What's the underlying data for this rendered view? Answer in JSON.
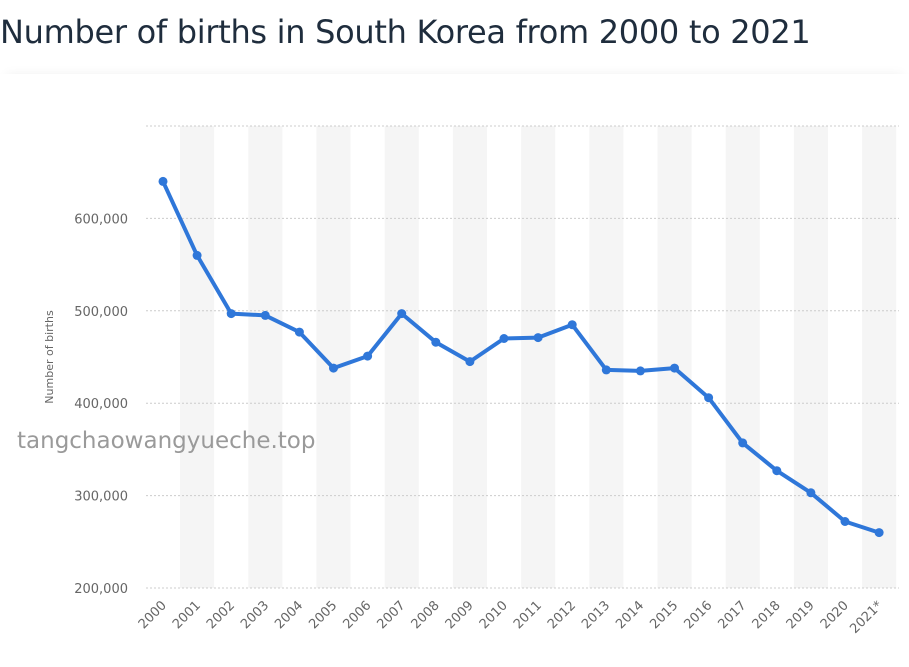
{
  "page": {
    "title": "Number of births in South Korea from 2000 to 2021",
    "watermark": "tangchaowangyueche.top",
    "accent_color": "#2f77d9"
  },
  "chart_data": {
    "type": "line",
    "title": "Number of births in South Korea from 2000 to 2021",
    "xlabel": "",
    "ylabel": "Number of births",
    "categories": [
      "2000",
      "2001",
      "2002",
      "2003",
      "2004",
      "2005",
      "2006",
      "2007",
      "2008",
      "2009",
      "2010",
      "2011",
      "2012",
      "2013",
      "2014",
      "2015",
      "2016",
      "2017",
      "2018",
      "2019",
      "2020",
      "2021*"
    ],
    "series": [
      {
        "values": [
          640000,
          560000,
          497000,
          495000,
          477000,
          438000,
          451000,
          497000,
          466000,
          445000,
          470000,
          471000,
          485000,
          436000,
          435000,
          438000,
          406000,
          357000,
          327000,
          303000,
          272000,
          260000
        ]
      }
    ],
    "yticks": [
      "200,000",
      "300,000",
      "400,000",
      "500,000",
      "600,000"
    ],
    "ylim": [
      200000,
      700000
    ],
    "grid": true,
    "line_color": "#2f77d9",
    "band_color": "#f5f5f5",
    "grid_color": "#cccccc"
  }
}
